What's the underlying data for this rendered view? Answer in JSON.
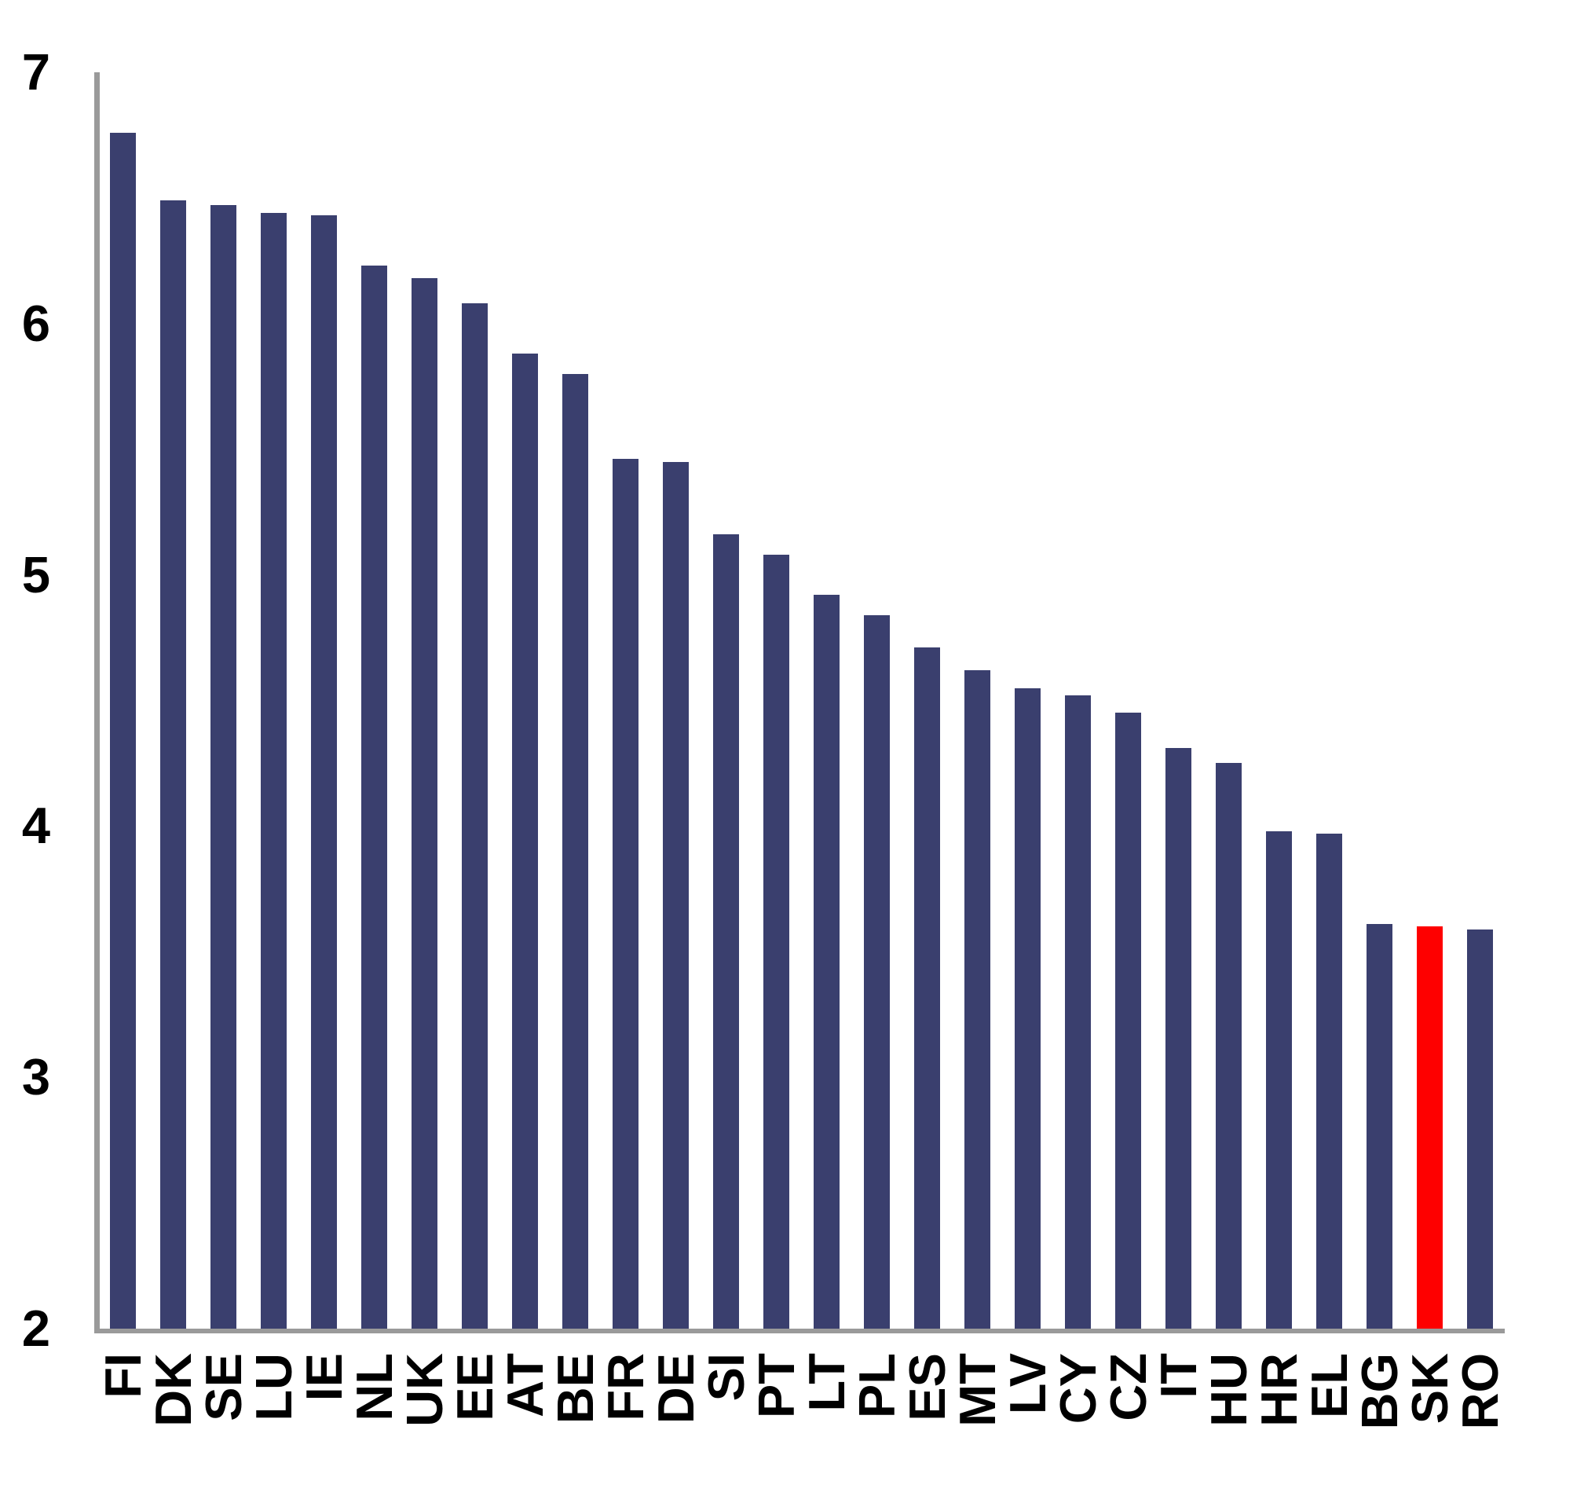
{
  "chart_data": {
    "type": "bar",
    "title": "",
    "xlabel": "",
    "ylabel": "",
    "categories": [
      "FI",
      "DK",
      "SE",
      "LU",
      "IE",
      "NL",
      "UK",
      "EE",
      "AT",
      "BE",
      "FR",
      "DE",
      "SI",
      "PT",
      "LT",
      "PL",
      "ES",
      "MT",
      "LV",
      "CY",
      "CZ",
      "IT",
      "HU",
      "HR",
      "EL",
      "BG",
      "SK",
      "RO"
    ],
    "values": [
      6.76,
      6.49,
      6.47,
      6.44,
      6.43,
      6.23,
      6.18,
      6.08,
      5.88,
      5.8,
      5.46,
      5.45,
      5.16,
      5.08,
      4.92,
      4.84,
      4.71,
      4.62,
      4.55,
      4.52,
      4.45,
      4.31,
      4.25,
      3.98,
      3.97,
      3.61,
      3.6,
      3.59
    ],
    "highlighted_category": "SK",
    "yticks": [
      7,
      6,
      5,
      4,
      3,
      2
    ],
    "ylim": [
      2,
      7
    ],
    "grid": false,
    "legend": null,
    "colors": {
      "bar": "#3a3f6e",
      "highlight": "#fe0000",
      "axis": "#9a9a9a",
      "text": "#000000",
      "background": "#ffffff"
    }
  }
}
